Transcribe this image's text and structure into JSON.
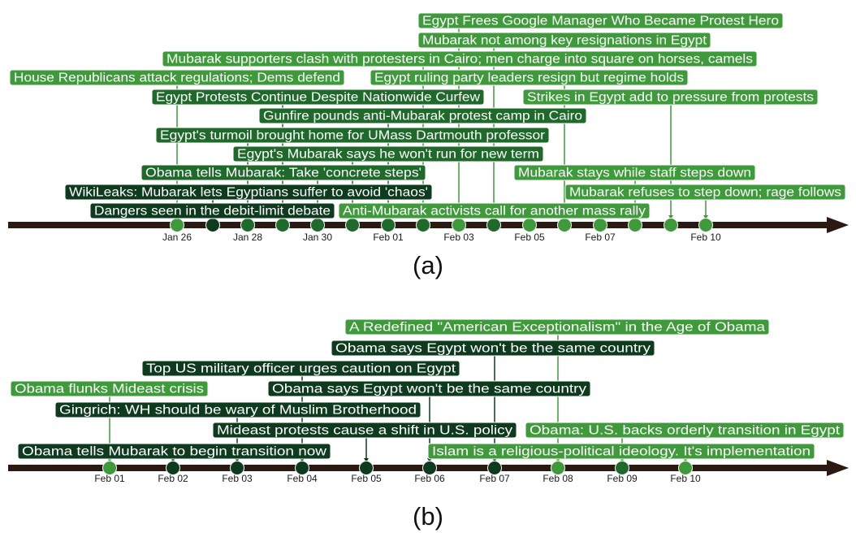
{
  "colors": {
    "axis": "#2a1a12",
    "dark": "#0e3a1e",
    "mid": "#1f6a2a",
    "light": "#3e9a3a"
  },
  "panel_a": {
    "caption": "(a)",
    "ticks": [
      "Jan 26",
      "Jan 28",
      "Jan 30",
      "Feb 01",
      "Feb 03",
      "Feb 05",
      "Feb 07",
      "Feb 10"
    ],
    "events": [
      {
        "label": "Egypt Frees Google Manager Who Became Protest Hero",
        "color": "light"
      },
      {
        "label": "Mubarak not among key resignations in Egypt",
        "color": "light"
      },
      {
        "label": "Mubarak supporters clash with protesters in Cairo; men charge into square on horses, camels",
        "color": "light"
      },
      {
        "label": "House Republicans attack regulations; Dems defend",
        "color": "light"
      },
      {
        "label": "Egypt ruling party leaders resign but regime holds",
        "color": "light"
      },
      {
        "label": "Egypt Protests Continue Despite Nationwide Curfew",
        "color": "mid"
      },
      {
        "label": "Strikes in Egypt add to pressure from protests",
        "color": "light"
      },
      {
        "label": "Gunfire pounds anti-Mubarak protest camp in Cairo",
        "color": "mid"
      },
      {
        "label": "Egypt's turmoil brought home for UMass Dartmouth professor",
        "color": "mid"
      },
      {
        "label": "Egypt's Mubarak says he won't run for new term",
        "color": "mid"
      },
      {
        "label": "Obama tells Mubarak: Take 'concrete steps'",
        "color": "mid"
      },
      {
        "label": "Mubarak stays while staff steps down",
        "color": "light"
      },
      {
        "label": "WikiLeaks: Mubarak lets Egyptians suffer to avoid 'chaos'",
        "color": "dark"
      },
      {
        "label": "Mubarak refuses to step down; rage follows",
        "color": "light"
      },
      {
        "label": "Dangers seen in the debit-limit debate",
        "color": "dark"
      },
      {
        "label": "Anti-Mubarak activists call for another mass rally",
        "color": "light"
      }
    ]
  },
  "panel_b": {
    "caption": "(b)",
    "ticks": [
      "Feb 01",
      "Feb 02",
      "Feb 03",
      "Feb 04",
      "Feb 05",
      "Feb 06",
      "Feb 07",
      "Feb 08",
      "Feb 09",
      "Feb 10"
    ],
    "events": [
      {
        "label": "A Redefined \"American Exceptionalism\" in the Age of Obama",
        "color": "light"
      },
      {
        "label": "Obama says Egypt won't be the same country",
        "color": "dark"
      },
      {
        "label": "Top US military officer urges caution on Egypt",
        "color": "dark"
      },
      {
        "label": "Obama flunks Mideast crisis",
        "color": "light"
      },
      {
        "label": "Obama says Egypt won't be the same country",
        "color": "dark"
      },
      {
        "label": "Gingrich: WH should be wary of Muslim Brotherhood",
        "color": "dark"
      },
      {
        "label": "Mideast protests cause a shift in U.S. policy",
        "color": "dark"
      },
      {
        "label": "Obama: U.S. backs orderly transition in Egypt",
        "color": "light"
      },
      {
        "label": "Obama tells Mubarak to begin transition now",
        "color": "dark"
      },
      {
        "label": "Islam is a religious-political ideology. It's implementation",
        "color": "light"
      }
    ]
  }
}
